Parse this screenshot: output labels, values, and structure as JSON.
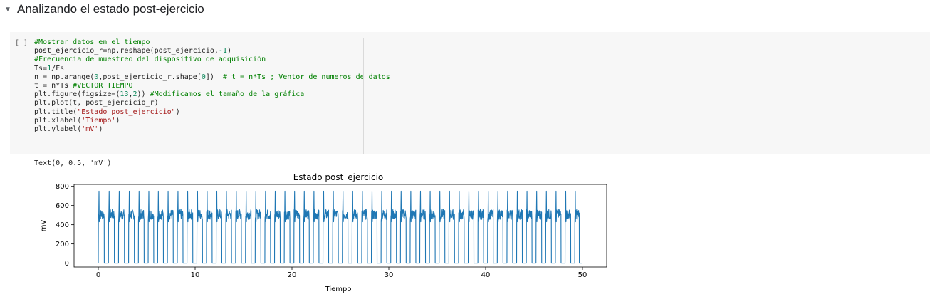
{
  "section": {
    "title": "Analizando el estado post-ejercicio",
    "caret_icon": "caret-down-icon"
  },
  "cell": {
    "run_indicator": "[ ]",
    "code_lines": [
      [
        {
          "t": "comment",
          "v": "#Mostrar datos en el tiempo"
        }
      ],
      [
        {
          "t": "plain",
          "v": "post_ejercicio_r=np.reshape(post_ejercicio,"
        },
        {
          "t": "number",
          "v": "-1"
        },
        {
          "t": "plain",
          "v": ")"
        }
      ],
      [
        {
          "t": "comment",
          "v": "#Frecuencia de muestreo del dispositivo de adquisición"
        }
      ],
      [
        {
          "t": "plain",
          "v": "Ts="
        },
        {
          "t": "number",
          "v": "1"
        },
        {
          "t": "plain",
          "v": "/Fs"
        }
      ],
      [
        {
          "t": "plain",
          "v": "n = np.arange("
        },
        {
          "t": "number",
          "v": "0"
        },
        {
          "t": "plain",
          "v": ",post_ejercicio_r.shape["
        },
        {
          "t": "number",
          "v": "0"
        },
        {
          "t": "plain",
          "v": "])  "
        },
        {
          "t": "comment",
          "v": "# t = n*Ts ; Ventor de numeros de datos"
        }
      ],
      [
        {
          "t": "plain",
          "v": "t = n*Ts "
        },
        {
          "t": "comment",
          "v": "#VECTOR TIEMPO"
        }
      ],
      [
        {
          "t": "plain",
          "v": "plt.figure(figsize=("
        },
        {
          "t": "number",
          "v": "13"
        },
        {
          "t": "plain",
          "v": ","
        },
        {
          "t": "number",
          "v": "2"
        },
        {
          "t": "plain",
          "v": ")) "
        },
        {
          "t": "comment",
          "v": "#Modificamos el tamaño de la gráfica"
        }
      ],
      [
        {
          "t": "plain",
          "v": "plt.plot(t, post_ejercicio_r)"
        }
      ],
      [
        {
          "t": "plain",
          "v": "plt.title("
        },
        {
          "t": "string",
          "v": "\"Estado post_ejercicio\""
        },
        {
          "t": "plain",
          "v": ")"
        }
      ],
      [
        {
          "t": "plain",
          "v": "plt.xlabel("
        },
        {
          "t": "string",
          "v": "'Tiempo'"
        },
        {
          "t": "plain",
          "v": ")"
        }
      ],
      [
        {
          "t": "plain",
          "v": "plt.ylabel("
        },
        {
          "t": "string",
          "v": "'mV'"
        },
        {
          "t": "plain",
          "v": ")"
        }
      ]
    ]
  },
  "output": {
    "text": "Text(0, 0.5, 'mV')"
  },
  "chart_data": {
    "type": "line",
    "title": "Estado post_ejercicio",
    "xlabel": "Tiempo",
    "ylabel": "mV",
    "xlim": [
      -2.5,
      52.5
    ],
    "ylim": [
      -40,
      820
    ],
    "xticks": [
      0,
      10,
      20,
      30,
      40,
      50
    ],
    "yticks": [
      0,
      200,
      400,
      600,
      800
    ],
    "grid": false,
    "line_color": "#1f77b4",
    "series": [
      {
        "t_start": 0.0,
        "t_end": 50.0,
        "cycle_starts": [
          0.0,
          1.05,
          2.09,
          3.13,
          4.14,
          5.15,
          6.13,
          7.14,
          8.16,
          9.16,
          10.18,
          11.17,
          12.17,
          13.16,
          14.18,
          15.2,
          16.2,
          17.2,
          18.2,
          19.2,
          20.2,
          21.2,
          22.2,
          23.2,
          24.2,
          25.2,
          26.2,
          27.2,
          28.2,
          29.2,
          30.2,
          31.2,
          32.2,
          33.2,
          34.2,
          35.2,
          36.2,
          37.2,
          38.2,
          39.2,
          40.2,
          41.2,
          42.2,
          43.2,
          44.2,
          45.2,
          46.2,
          47.2,
          48.2,
          49.2
        ],
        "peak_mV": 750,
        "plateau_mV": [
          420,
          560
        ],
        "baseline_mV": 0,
        "final_mV": 0
      }
    ]
  }
}
